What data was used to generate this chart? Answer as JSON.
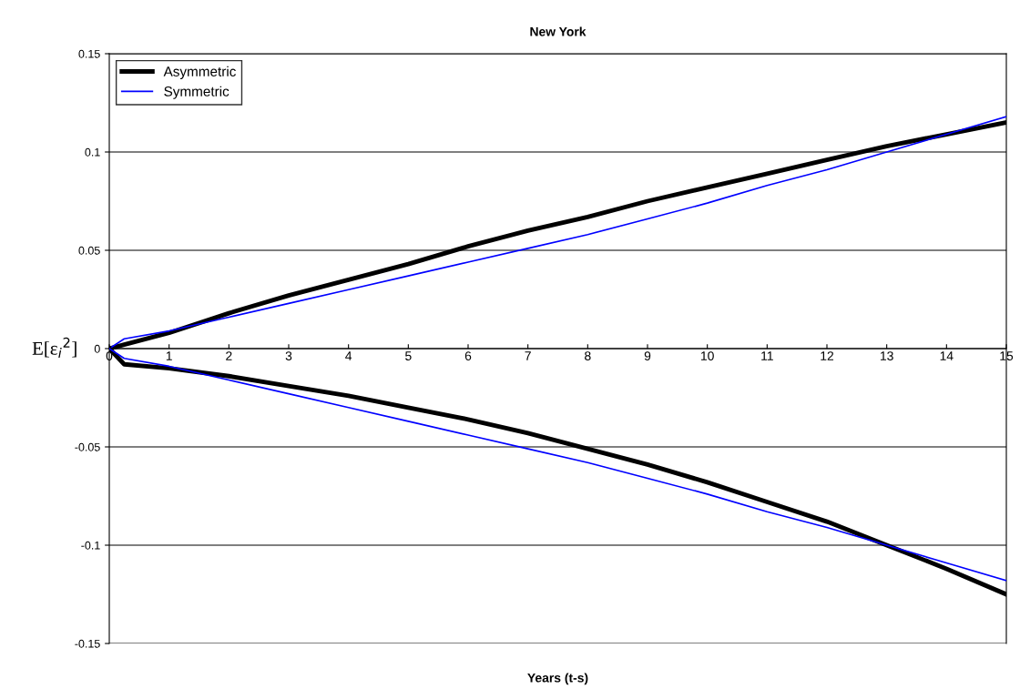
{
  "chart_data": {
    "type": "line",
    "title": "New York",
    "xlabel": "Years (t-s)",
    "ylabel": "E[ε$_{i}$$^{2}$]",
    "x": [
      0,
      0.25,
      1,
      2,
      3,
      4,
      5,
      6,
      7,
      8,
      9,
      10,
      11,
      12,
      13,
      14,
      15
    ],
    "series": [
      {
        "name": "Asymmetric",
        "color": "#000000",
        "values": [
          0,
          0.002,
          0.008,
          0.018,
          0.027,
          0.035,
          0.043,
          0.052,
          0.06,
          0.067,
          0.075,
          0.082,
          0.089,
          0.096,
          0.103,
          0.109,
          0.115
        ]
      },
      {
        "name": "Symmetric",
        "color": "#0000ff",
        "values": [
          0,
          0.005,
          0.009,
          0.016,
          0.023,
          0.03,
          0.037,
          0.044,
          0.051,
          0.058,
          0.066,
          0.074,
          0.083,
          0.091,
          0.1,
          0.109,
          0.118
        ]
      },
      {
        "color": "#000000",
        "values": [
          0,
          -0.008,
          -0.01,
          -0.014,
          -0.019,
          -0.024,
          -0.03,
          -0.036,
          -0.043,
          -0.051,
          -0.059,
          -0.068,
          -0.078,
          -0.088,
          -0.1,
          -0.112,
          -0.125
        ]
      },
      {
        "color": "#0000ff",
        "values": [
          0,
          -0.005,
          -0.009,
          -0.016,
          -0.023,
          -0.03,
          -0.037,
          -0.044,
          -0.051,
          -0.058,
          -0.066,
          -0.074,
          -0.083,
          -0.091,
          -0.1,
          -0.109,
          -0.118
        ]
      }
    ],
    "xlim": [
      0,
      15
    ],
    "xticks": [
      0,
      1,
      2,
      3,
      4,
      5,
      6,
      7,
      8,
      9,
      10,
      11,
      12,
      13,
      14,
      15
    ],
    "ylim": [
      -0.15,
      0.15
    ],
    "yticks": [
      -0.15,
      -0.1,
      -0.05,
      0,
      0.05,
      0.1,
      0.15
    ],
    "grid": "y",
    "legend": "top left",
    "marker": "none",
    "line_style": "solid"
  }
}
